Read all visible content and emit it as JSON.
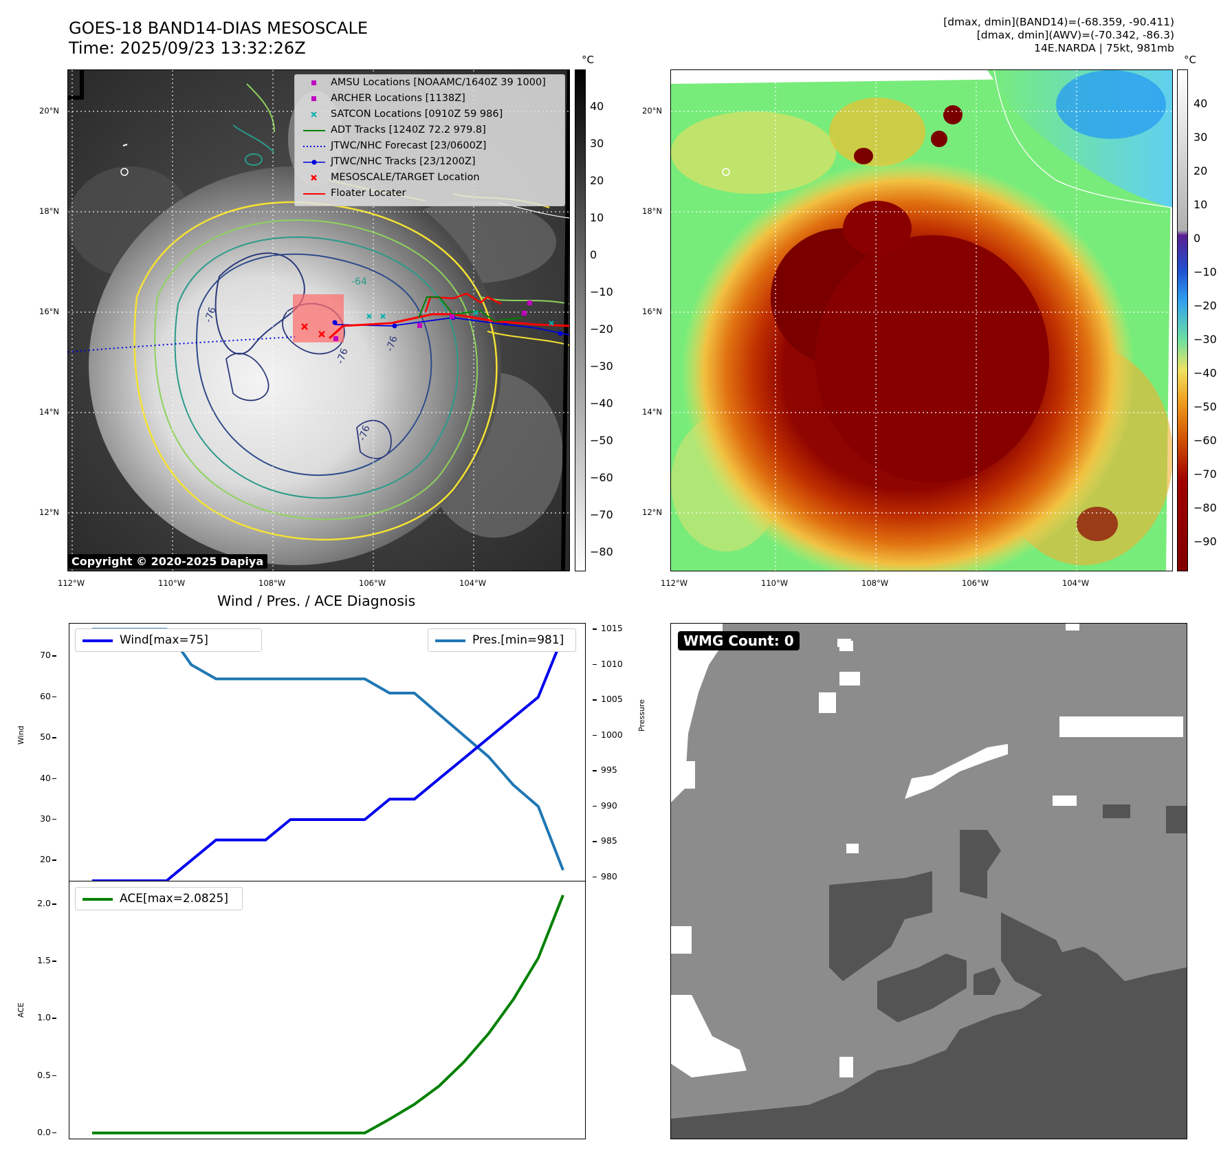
{
  "header": {
    "title_line1": "GOES-18 BAND14-DIAS MESOSCALE",
    "title_line2": "Time: 2025/09/23 13:32:26Z",
    "info_line1": "[dmax, dmin](BAND14)=(-68.359, -90.411)",
    "info_line2": "[dmax, dmin](AWV)=(-70.342, -86.3)",
    "info_line3": "14E.NARDA | 75kt, 981mb"
  },
  "map_axes": {
    "lat_labels": [
      "20°N",
      "18°N",
      "16°N",
      "14°N",
      "12°N"
    ],
    "lon_labels": [
      "112°W",
      "110°W",
      "108°W",
      "106°W",
      "104°W"
    ]
  },
  "colorbar_left": {
    "unit": "°C",
    "ticks": [
      "40",
      "30",
      "20",
      "10",
      "0",
      "−10",
      "−20",
      "−30",
      "−40",
      "−50",
      "−60",
      "−70",
      "−80"
    ]
  },
  "colorbar_right": {
    "unit": "°C",
    "ticks": [
      "40",
      "30",
      "20",
      "10",
      "0",
      "−10",
      "−20",
      "−30",
      "−40",
      "−50",
      "−60",
      "−70",
      "−80",
      "−90"
    ]
  },
  "legend": {
    "items": [
      {
        "label": "AMSU Locations [NOAAMC/1640Z 39 1000]",
        "color": "#c000c0",
        "symbol": "square"
      },
      {
        "label": "ARCHER Locations [1138Z]",
        "color": "#c000c0",
        "symbol": "square"
      },
      {
        "label": "SATCON Locations [0910Z 59 986]",
        "color": "#00b0b0",
        "symbol": "x"
      },
      {
        "label": "ADT Tracks [1240Z 72.2 979.8]",
        "color": "#008000",
        "symbol": "line"
      },
      {
        "label": "JTWC/NHC Forecast [23/0600Z]",
        "color": "#0000dd",
        "symbol": "dotted"
      },
      {
        "label": "JTWC/NHC Tracks [23/1200Z]",
        "color": "#0000dd",
        "symbol": "line-dot"
      },
      {
        "label": "MESOSCALE/TARGET Location",
        "color": "#ff0000",
        "symbol": "x"
      },
      {
        "label": "Floater Locater",
        "color": "#ff0000",
        "symbol": "line"
      }
    ]
  },
  "copyright": "Copyright © 2020-2025 Dapiya",
  "contour_labels": [
    "-76",
    "-76",
    "-76",
    "-76",
    "-64"
  ],
  "diagnosis_title": "Wind / Pres. / ACE Diagnosis",
  "wmg_label": "WMG Count: 0",
  "chart_data": [
    {
      "type": "line",
      "title": "Wind / Pres. / ACE Diagnosis",
      "ylabel": "Wind",
      "y2label": "Pressure",
      "x": [
        0,
        1,
        2,
        3,
        4,
        5,
        6,
        7,
        8,
        9,
        10,
        11,
        12,
        13,
        14,
        15,
        16,
        17,
        18,
        19
      ],
      "ylim": [
        15,
        78
      ],
      "y2lim": [
        979.5,
        1015.8
      ],
      "yticks": [
        20,
        30,
        40,
        50,
        60,
        70
      ],
      "y2ticks": [
        980,
        985,
        990,
        995,
        1000,
        1005,
        1010,
        1015
      ],
      "series": [
        {
          "name": "Wind[max=75]",
          "axis": "left",
          "color": "#0000ee",
          "values": [
            15,
            15,
            15,
            15,
            20,
            25,
            25,
            25,
            30,
            30,
            30,
            30,
            35,
            35,
            40,
            45,
            50,
            55,
            60,
            75
          ]
        },
        {
          "name": "Pres.[min=981]",
          "axis": "right",
          "color": "#1f77b4",
          "values": [
            1015,
            1015,
            1015,
            1015,
            1010,
            1008,
            1008,
            1008,
            1008,
            1008,
            1008,
            1008,
            1006,
            1006,
            1003,
            1000,
            997,
            993,
            990,
            981
          ]
        }
      ],
      "legend": [
        "top-left",
        "top-right"
      ]
    },
    {
      "type": "line",
      "ylabel": "ACE",
      "x": [
        0,
        1,
        2,
        3,
        4,
        5,
        6,
        7,
        8,
        9,
        10,
        11,
        12,
        13,
        14,
        15,
        16,
        17,
        18,
        19
      ],
      "ylim": [
        -0.05,
        2.2
      ],
      "yticks": [
        0.0,
        0.5,
        1.0,
        1.5,
        2.0
      ],
      "series": [
        {
          "name": "ACE[max=2.0825]",
          "color": "#008000",
          "values": [
            0,
            0,
            0,
            0,
            0,
            0,
            0,
            0,
            0,
            0,
            0,
            0,
            0.12,
            0.25,
            0.41,
            0.62,
            0.87,
            1.17,
            1.53,
            2.08
          ]
        }
      ],
      "legend": "top-left"
    }
  ]
}
